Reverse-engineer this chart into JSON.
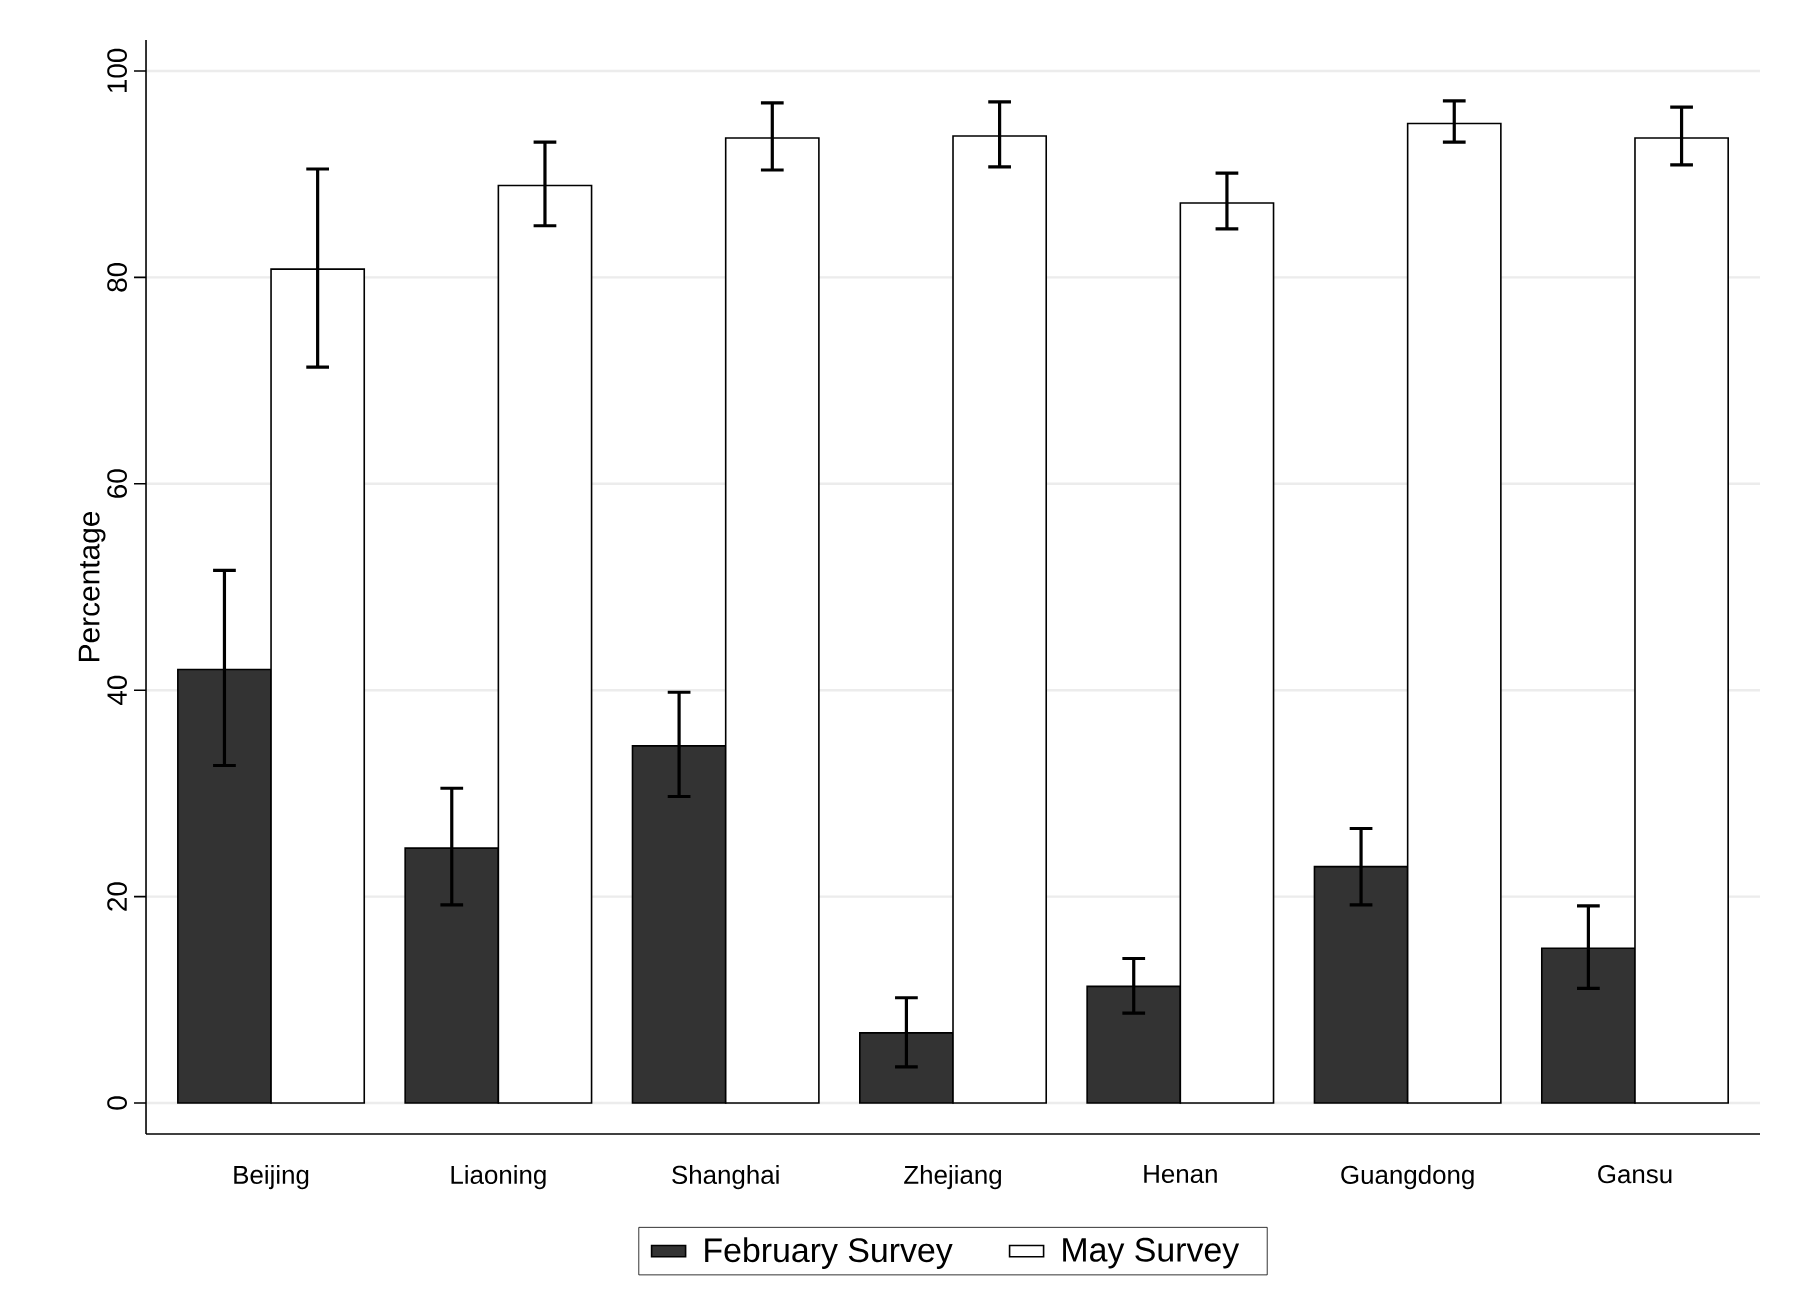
{
  "chart_data": {
    "type": "bar",
    "ylabel": "Percentage",
    "categories": [
      "Beijing",
      "Liaoning",
      "Shanghai",
      "Zhejiang",
      "Henan",
      "Guangdong",
      "Gansu"
    ],
    "series": [
      {
        "name": "February Survey",
        "color": "#333333",
        "values": [
          42.0,
          24.7,
          34.6,
          6.8,
          11.3,
          22.9,
          15.0
        ],
        "errors": [
          [
            32.7,
            51.6
          ],
          [
            19.2,
            30.5
          ],
          [
            29.7,
            39.8
          ],
          [
            3.5,
            10.2
          ],
          [
            8.7,
            14.0
          ],
          [
            19.2,
            26.6
          ],
          [
            11.1,
            19.1
          ]
        ]
      },
      {
        "name": "May Survey",
        "color": "#ffffff",
        "values": [
          80.8,
          88.9,
          93.5,
          93.7,
          87.2,
          94.9,
          93.5
        ],
        "errors": [
          [
            71.3,
            90.5
          ],
          [
            85.0,
            93.1
          ],
          [
            90.4,
            96.9
          ],
          [
            90.7,
            97.0
          ],
          [
            84.7,
            90.1
          ],
          [
            93.1,
            97.1
          ],
          [
            90.9,
            96.5
          ]
        ]
      }
    ],
    "ylim": [
      -3,
      103
    ],
    "yticks": [
      0,
      20,
      40,
      60,
      80,
      100
    ],
    "grid": "y",
    "legend": "bottom"
  }
}
